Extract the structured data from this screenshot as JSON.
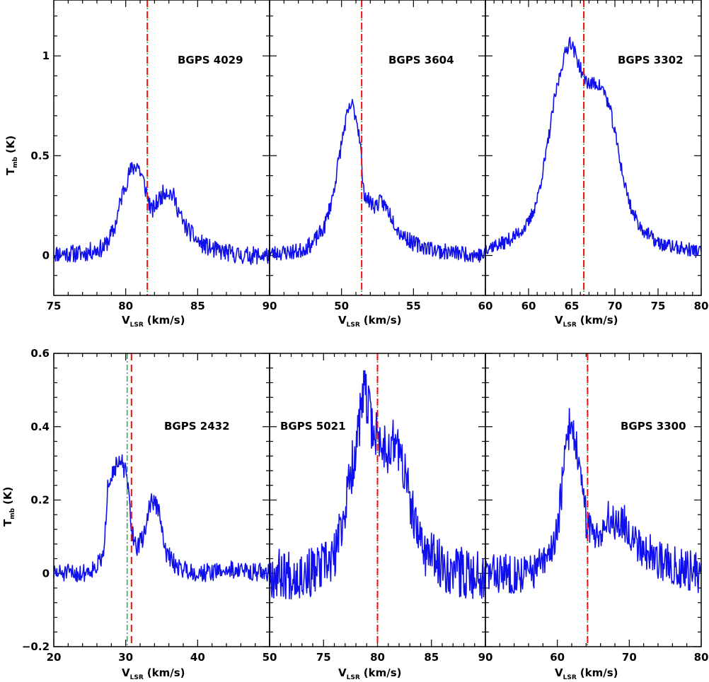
{
  "figure": {
    "x_axis_label": "V",
    "x_axis_label_sub": "LSR",
    "x_axis_label_unit": "(km/s)",
    "y_axis_label": "T",
    "y_axis_label_sub": "mb",
    "y_axis_label_unit": "(K)"
  },
  "chart_data": [
    {
      "type": "line",
      "title": "BGPS 4029",
      "xlim": [
        75,
        90
      ],
      "ylim": [
        -0.2,
        1.28
      ],
      "x_ticks": [
        75,
        80,
        85,
        90
      ],
      "x_tick_labels": [
        "75",
        "80",
        "85",
        "90"
      ],
      "y_ticks": [
        0,
        0.5,
        1
      ],
      "y_tick_labels": [
        "0",
        "0.5",
        "1"
      ],
      "vlines": [
        81.5
      ],
      "noise": 0.045,
      "seed": 11,
      "series": [
        {
          "color": "#1010ee",
          "x": [
            75,
            77,
            78.5,
            79.2,
            79.8,
            80.3,
            80.8,
            81.2,
            81.5,
            81.8,
            82.3,
            82.8,
            83.3,
            84,
            85,
            86,
            88,
            90
          ],
          "y": [
            0.01,
            0.01,
            0.04,
            0.13,
            0.32,
            0.42,
            0.46,
            0.38,
            0.3,
            0.22,
            0.28,
            0.33,
            0.3,
            0.16,
            0.07,
            0.03,
            0.0,
            0.0
          ]
        }
      ]
    },
    {
      "type": "line",
      "title": "BGPS 3604",
      "xlim": [
        45,
        60
      ],
      "ylim": [
        -0.2,
        1.28
      ],
      "x_ticks": [
        45,
        50,
        55,
        60
      ],
      "x_tick_labels": [
        "",
        "50",
        "55",
        "60"
      ],
      "y_ticks": [
        0,
        0.5,
        1
      ],
      "y_tick_labels": [],
      "vlines": [
        51.4
      ],
      "noise": 0.04,
      "seed": 23,
      "series": [
        {
          "color": "#1010ee",
          "x": [
            45,
            47,
            48,
            48.8,
            49.4,
            49.9,
            50.3,
            50.7,
            51,
            51.3,
            51.5,
            51.8,
            52.3,
            52.8,
            53.3,
            54,
            55,
            57,
            60
          ],
          "y": [
            0.01,
            0.02,
            0.06,
            0.14,
            0.3,
            0.52,
            0.68,
            0.76,
            0.7,
            0.58,
            0.33,
            0.28,
            0.25,
            0.27,
            0.22,
            0.12,
            0.06,
            0.02,
            0.0
          ]
        }
      ]
    },
    {
      "type": "line",
      "title": "BGPS 3302",
      "xlim": [
        55,
        80
      ],
      "ylim": [
        -0.2,
        1.28
      ],
      "x_ticks": [
        55,
        60,
        65,
        70,
        75,
        80
      ],
      "x_tick_labels": [
        "",
        "60",
        "65",
        "70",
        "75",
        "80"
      ],
      "y_ticks": [
        0,
        0.5,
        1
      ],
      "y_tick_labels": [],
      "vlines": [
        66.4
      ],
      "noise": 0.035,
      "seed": 37,
      "series": [
        {
          "color": "#1010ee",
          "x": [
            55,
            57,
            58.5,
            60,
            61,
            62,
            63,
            64,
            64.8,
            65.5,
            66.3,
            67,
            68,
            68.8,
            69.5,
            70.3,
            71,
            72,
            73,
            75,
            77,
            80
          ],
          "y": [
            0.04,
            0.06,
            0.1,
            0.16,
            0.28,
            0.5,
            0.78,
            0.98,
            1.08,
            1.0,
            0.9,
            0.86,
            0.86,
            0.82,
            0.72,
            0.55,
            0.38,
            0.22,
            0.14,
            0.06,
            0.04,
            0.02
          ]
        }
      ]
    },
    {
      "type": "line",
      "title": "BGPS 2432",
      "xlim": [
        20,
        50
      ],
      "ylim": [
        -0.2,
        0.6
      ],
      "x_ticks": [
        20,
        30,
        40,
        50
      ],
      "x_tick_labels": [
        "20",
        "30",
        "40",
        "50"
      ],
      "y_ticks": [
        -0.2,
        0,
        0.2,
        0.4,
        0.6
      ],
      "y_tick_labels": [
        "−0.2",
        "0",
        "0.2",
        "0.4",
        "0.6"
      ],
      "vlines": [
        30.8
      ],
      "vline_green_offset": -0.6,
      "noise": 0.025,
      "seed": 51,
      "series": [
        {
          "color": "#1010ee",
          "x": [
            20,
            24,
            26,
            27,
            27.5,
            28.5,
            29.5,
            30.2,
            30.8,
            31.5,
            32.5,
            33.5,
            34.5,
            35.5,
            37,
            40,
            45,
            50
          ],
          "y": [
            0.0,
            0.0,
            0.02,
            0.05,
            0.25,
            0.29,
            0.3,
            0.26,
            0.12,
            0.07,
            0.1,
            0.2,
            0.18,
            0.06,
            0.02,
            0.0,
            0.01,
            0.0
          ]
        }
      ]
    },
    {
      "type": "line",
      "title": "BGPS 5021",
      "xlim": [
        70,
        90
      ],
      "ylim": [
        -0.2,
        0.6
      ],
      "x_ticks": [
        70,
        75,
        80,
        85,
        90
      ],
      "x_tick_labels": [
        "",
        "75",
        "80",
        "85",
        "90"
      ],
      "y_ticks": [
        -0.2,
        0,
        0.2,
        0.4,
        0.6
      ],
      "y_tick_labels": [],
      "vlines": [
        80.0
      ],
      "noise": 0.07,
      "seed": 67,
      "series": [
        {
          "color": "#1010ee",
          "x": [
            70,
            74,
            76,
            77,
            78,
            78.8,
            79.5,
            80.2,
            81,
            81.8,
            82.6,
            83.5,
            84.5,
            86,
            88,
            90
          ],
          "y": [
            0.0,
            0.0,
            0.04,
            0.18,
            0.35,
            0.5,
            0.4,
            0.36,
            0.34,
            0.36,
            0.26,
            0.12,
            0.06,
            0.02,
            0.0,
            0.0
          ]
        }
      ]
    },
    {
      "type": "line",
      "title": "BGPS 3300",
      "xlim": [
        50,
        80
      ],
      "ylim": [
        -0.2,
        0.6
      ],
      "x_ticks": [
        50,
        60,
        70,
        80
      ],
      "x_tick_labels": [
        "",
        "60",
        "70",
        "80"
      ],
      "y_ticks": [
        -0.2,
        0,
        0.2,
        0.4,
        0.6
      ],
      "y_tick_labels": [],
      "vlines": [
        64.2
      ],
      "noise": 0.055,
      "seed": 83,
      "series": [
        {
          "color": "#1010ee",
          "x": [
            50,
            56,
            58.5,
            60,
            61,
            61.8,
            62.6,
            63.3,
            64,
            64.8,
            66,
            67.5,
            69,
            71,
            73,
            76,
            80
          ],
          "y": [
            0.0,
            0.0,
            0.03,
            0.12,
            0.3,
            0.42,
            0.36,
            0.24,
            0.15,
            0.11,
            0.12,
            0.15,
            0.14,
            0.09,
            0.05,
            0.02,
            0.0
          ]
        }
      ]
    }
  ]
}
